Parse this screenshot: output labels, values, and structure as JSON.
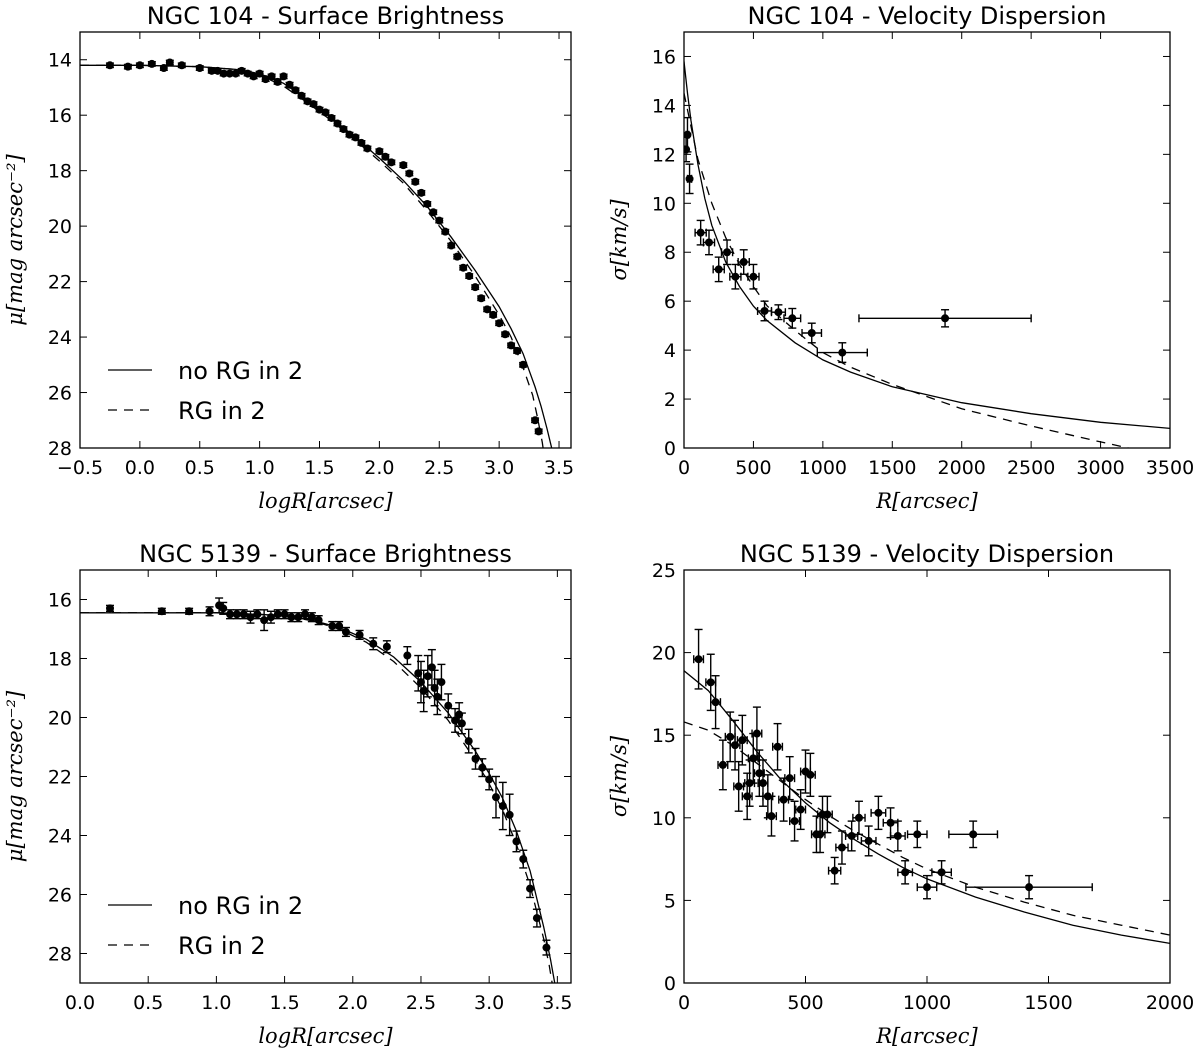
{
  "chart_data": [
    {
      "type": "scatter",
      "title": "NGC 104 - Surface Brightness",
      "xlabel": "logR[arcsec]",
      "ylabel": "μ[mag arcsec⁻²]",
      "xlim": [
        -0.5,
        3.6
      ],
      "ylim": [
        28,
        13
      ],
      "y_inverted": true,
      "xticks": [
        -0.5,
        0.0,
        0.5,
        1.0,
        1.5,
        2.0,
        2.5,
        3.0,
        3.5
      ],
      "xtick_labels": [
        "−0.5",
        "0.0",
        "0.5",
        "1.0",
        "1.5",
        "2.0",
        "2.5",
        "3.0",
        "3.5"
      ],
      "yticks": [
        14,
        16,
        18,
        20,
        22,
        24,
        26,
        28
      ],
      "ytick_labels": [
        "14",
        "16",
        "18",
        "20",
        "22",
        "24",
        "26",
        "28"
      ],
      "legend": {
        "position": "lower-left",
        "entries": [
          {
            "label": "no RG in 2",
            "style": "solid"
          },
          {
            "label": "RG in 2",
            "style": "dashed"
          }
        ]
      },
      "series": [
        {
          "name": "observed",
          "style": "points",
          "yerr": 0.08,
          "x": [
            -0.25,
            -0.1,
            0.0,
            0.1,
            0.2,
            0.25,
            0.35,
            0.5,
            0.6,
            0.65,
            0.7,
            0.75,
            0.8,
            0.85,
            0.9,
            0.95,
            1.0,
            1.05,
            1.1,
            1.15,
            1.2,
            1.25,
            1.3,
            1.35,
            1.4,
            1.45,
            1.5,
            1.55,
            1.6,
            1.65,
            1.7,
            1.75,
            1.8,
            1.85,
            1.9,
            2.0,
            2.05,
            2.1,
            2.2,
            2.25,
            2.3,
            2.35,
            2.4,
            2.45,
            2.5,
            2.55,
            2.6,
            2.65,
            2.7,
            2.75,
            2.8,
            2.85,
            2.9,
            2.95,
            3.0,
            3.05,
            3.1,
            3.15,
            3.2,
            3.3,
            3.33
          ],
          "y": [
            14.2,
            14.25,
            14.2,
            14.15,
            14.3,
            14.1,
            14.2,
            14.3,
            14.4,
            14.4,
            14.5,
            14.5,
            14.5,
            14.4,
            14.5,
            14.6,
            14.5,
            14.7,
            14.6,
            14.8,
            14.6,
            14.9,
            15.1,
            15.3,
            15.5,
            15.6,
            15.8,
            15.9,
            16.1,
            16.3,
            16.5,
            16.7,
            16.8,
            17.0,
            17.2,
            17.3,
            17.5,
            17.7,
            17.8,
            18.1,
            18.4,
            18.8,
            19.2,
            19.5,
            19.8,
            20.2,
            20.7,
            21.1,
            21.5,
            21.8,
            22.2,
            22.6,
            23.0,
            23.2,
            23.5,
            23.9,
            24.3,
            24.5,
            25.0,
            27.0,
            27.4
          ]
        },
        {
          "name": "no RG in 2",
          "style": "solid",
          "x": [
            -0.5,
            0.0,
            0.5,
            0.8,
            1.0,
            1.2,
            1.4,
            1.6,
            1.8,
            2.0,
            2.2,
            2.4,
            2.6,
            2.8,
            3.0,
            3.1,
            3.2,
            3.3,
            3.35,
            3.4,
            3.45,
            3.48
          ],
          "y": [
            14.2,
            14.2,
            14.25,
            14.35,
            14.5,
            14.85,
            15.45,
            16.1,
            16.8,
            17.55,
            18.35,
            19.3,
            20.4,
            21.6,
            22.9,
            23.7,
            24.6,
            25.8,
            26.5,
            27.3,
            28.2,
            29.0
          ]
        },
        {
          "name": "RG in 2",
          "style": "dashed",
          "x": [
            -0.5,
            0.0,
            0.5,
            0.8,
            1.0,
            1.2,
            1.4,
            1.6,
            1.8,
            2.0,
            2.2,
            2.4,
            2.6,
            2.8,
            3.0,
            3.1,
            3.2,
            3.28,
            3.32,
            3.36,
            3.4
          ],
          "y": [
            14.2,
            14.2,
            14.25,
            14.35,
            14.55,
            14.95,
            15.55,
            16.2,
            16.9,
            17.65,
            18.45,
            19.45,
            20.55,
            21.8,
            23.2,
            24.0,
            25.1,
            26.1,
            26.9,
            27.8,
            29.0
          ]
        }
      ]
    },
    {
      "type": "scatter",
      "title": "NGC 104 - Velocity Dispersion",
      "xlabel": "R[arcsec]",
      "ylabel": "σ[km/s]",
      "xlim": [
        0,
        3500
      ],
      "ylim": [
        0,
        17
      ],
      "xticks": [
        0,
        500,
        1000,
        1500,
        2000,
        2500,
        3000,
        3500
      ],
      "xtick_labels": [
        "0",
        "500",
        "1000",
        "1500",
        "2000",
        "2500",
        "3000",
        "3500"
      ],
      "yticks": [
        0,
        2,
        4,
        6,
        8,
        10,
        12,
        14,
        16
      ],
      "ytick_labels": [
        "0",
        "2",
        "4",
        "6",
        "8",
        "10",
        "12",
        "14",
        "16"
      ],
      "series": [
        {
          "name": "observed",
          "style": "points",
          "x": [
            15,
            25,
            40,
            120,
            180,
            250,
            310,
            370,
            430,
            500,
            580,
            680,
            780,
            920,
            1140,
            1880
          ],
          "y": [
            12.2,
            12.8,
            11.0,
            8.8,
            8.4,
            7.3,
            8.0,
            7.0,
            7.6,
            7.0,
            5.6,
            5.55,
            5.3,
            4.7,
            3.9,
            5.3
          ],
          "yerr": [
            0.5,
            0.7,
            0.6,
            0.5,
            0.5,
            0.5,
            0.5,
            0.5,
            0.5,
            0.5,
            0.4,
            0.3,
            0.4,
            0.4,
            0.4,
            0.35
          ],
          "xerr": [
            10,
            10,
            15,
            40,
            40,
            40,
            40,
            40,
            40,
            40,
            50,
            50,
            60,
            70,
            180,
            620
          ]
        },
        {
          "name": "no RG in 2",
          "style": "solid",
          "x": [
            0,
            25,
            50,
            100,
            150,
            200,
            300,
            400,
            500,
            600,
            800,
            1000,
            1200,
            1500,
            2000,
            2500,
            3000,
            3500
          ],
          "y": [
            15.8,
            14.5,
            13.4,
            11.6,
            10.2,
            9.1,
            7.6,
            6.6,
            5.8,
            5.2,
            4.3,
            3.6,
            3.1,
            2.5,
            1.85,
            1.4,
            1.05,
            0.8
          ]
        },
        {
          "name": "RG in 2",
          "style": "dashed",
          "x": [
            0,
            100,
            200,
            300,
            400,
            500,
            600,
            800,
            1000,
            1200,
            1500,
            2000,
            2500,
            3000,
            3200
          ],
          "y": [
            14.5,
            11.8,
            10.0,
            8.6,
            7.5,
            6.6,
            5.8,
            4.8,
            3.9,
            3.3,
            2.6,
            1.6,
            0.9,
            0.25,
            0.0
          ]
        }
      ]
    },
    {
      "type": "scatter",
      "title": "NGC 5139 - Surface Brightness",
      "xlabel": "logR[arcsec]",
      "ylabel": "μ[mag arcsec⁻²]",
      "xlim": [
        0.0,
        3.6
      ],
      "ylim": [
        29,
        15
      ],
      "y_inverted": true,
      "xticks": [
        0.0,
        0.5,
        1.0,
        1.5,
        2.0,
        2.5,
        3.0,
        3.5
      ],
      "xtick_labels": [
        "0.0",
        "0.5",
        "1.0",
        "1.5",
        "2.0",
        "2.5",
        "3.0",
        "3.5"
      ],
      "yticks": [
        16,
        18,
        20,
        22,
        24,
        26,
        28
      ],
      "ytick_labels": [
        "16",
        "18",
        "20",
        "22",
        "24",
        "26",
        "28"
      ],
      "legend": {
        "position": "lower-left",
        "entries": [
          {
            "label": "no RG in 2",
            "style": "solid"
          },
          {
            "label": "RG in 2",
            "style": "dashed"
          }
        ]
      },
      "series": [
        {
          "name": "observed",
          "style": "points",
          "x": [
            0.22,
            0.6,
            0.8,
            0.95,
            1.02,
            1.05,
            1.1,
            1.15,
            1.2,
            1.25,
            1.3,
            1.35,
            1.4,
            1.45,
            1.5,
            1.55,
            1.6,
            1.65,
            1.7,
            1.75,
            1.85,
            1.9,
            1.95,
            2.05,
            2.15,
            2.25,
            2.4,
            2.48,
            2.5,
            2.52,
            2.55,
            2.58,
            2.6,
            2.62,
            2.65,
            2.7,
            2.75,
            2.78,
            2.8,
            2.85,
            2.9,
            2.95,
            3.0,
            3.05,
            3.1,
            3.15,
            3.2,
            3.25,
            3.3,
            3.35,
            3.42
          ],
          "y": [
            16.3,
            16.4,
            16.4,
            16.4,
            16.2,
            16.3,
            16.5,
            16.5,
            16.5,
            16.6,
            16.5,
            16.7,
            16.6,
            16.5,
            16.5,
            16.6,
            16.6,
            16.5,
            16.6,
            16.7,
            16.9,
            16.9,
            17.1,
            17.2,
            17.5,
            17.6,
            17.9,
            18.5,
            18.8,
            19.1,
            18.6,
            18.3,
            19.0,
            19.3,
            18.8,
            19.6,
            20.1,
            19.9,
            20.2,
            20.8,
            21.4,
            21.7,
            22.1,
            22.7,
            23.0,
            23.3,
            24.2,
            24.8,
            25.8,
            26.8,
            27.8
          ],
          "yerr": [
            0.1,
            0.1,
            0.1,
            0.15,
            0.25,
            0.2,
            0.15,
            0.15,
            0.15,
            0.2,
            0.15,
            0.35,
            0.2,
            0.15,
            0.15,
            0.15,
            0.15,
            0.15,
            0.15,
            0.15,
            0.15,
            0.15,
            0.15,
            0.15,
            0.2,
            0.2,
            0.3,
            0.6,
            0.7,
            0.7,
            0.7,
            0.6,
            0.6,
            0.6,
            0.6,
            0.4,
            0.4,
            0.4,
            0.35,
            0.4,
            0.35,
            0.3,
            0.35,
            0.7,
            0.8,
            0.7,
            0.35,
            0.3,
            0.3,
            0.3,
            0.25
          ]
        },
        {
          "name": "no RG in 2",
          "style": "solid",
          "x": [
            0.0,
            0.5,
            1.0,
            1.3,
            1.5,
            1.7,
            1.9,
            2.1,
            2.3,
            2.5,
            2.7,
            2.9,
            3.0,
            3.1,
            3.2,
            3.3,
            3.4,
            3.45,
            3.5
          ],
          "y": [
            16.45,
            16.45,
            16.45,
            16.5,
            16.55,
            16.7,
            16.95,
            17.35,
            17.95,
            18.8,
            19.85,
            21.15,
            21.9,
            22.75,
            23.85,
            25.2,
            27.1,
            28.2,
            29.5
          ]
        },
        {
          "name": "RG in 2",
          "style": "dashed",
          "x": [
            0.0,
            0.5,
            1.0,
            1.3,
            1.5,
            1.7,
            1.9,
            2.1,
            2.3,
            2.5,
            2.7,
            2.9,
            3.0,
            3.1,
            3.2,
            3.3,
            3.4,
            3.44,
            3.48
          ],
          "y": [
            16.45,
            16.45,
            16.45,
            16.5,
            16.55,
            16.72,
            17.0,
            17.45,
            18.1,
            19.0,
            20.1,
            21.45,
            22.25,
            23.15,
            24.3,
            25.7,
            27.5,
            28.4,
            29.5
          ]
        }
      ]
    },
    {
      "type": "scatter",
      "title": "NGC 5139 - Velocity Dispersion",
      "xlabel": "R[arcsec]",
      "ylabel": "σ[km/s]",
      "xlim": [
        0,
        2000
      ],
      "ylim": [
        0,
        25
      ],
      "xticks": [
        0,
        500,
        1000,
        1500,
        2000
      ],
      "xtick_labels": [
        "0",
        "500",
        "1000",
        "1500",
        "2000"
      ],
      "yticks": [
        0,
        5,
        10,
        15,
        20,
        25
      ],
      "ytick_labels": [
        "0",
        "5",
        "10",
        "15",
        "20",
        "25"
      ],
      "series": [
        {
          "name": "observed",
          "style": "points",
          "x": [
            60,
            110,
            130,
            160,
            190,
            210,
            225,
            240,
            260,
            270,
            285,
            300,
            310,
            325,
            345,
            360,
            385,
            410,
            435,
            455,
            480,
            500,
            520,
            545,
            560,
            570,
            590,
            620,
            650,
            690,
            720,
            760,
            800,
            850,
            880,
            910,
            960,
            1000,
            1060,
            1190,
            1420
          ],
          "y": [
            19.6,
            18.2,
            17.0,
            13.2,
            14.9,
            14.4,
            11.9,
            14.7,
            11.3,
            12.1,
            13.6,
            15.1,
            12.7,
            12.1,
            11.3,
            10.1,
            14.3,
            11.1,
            12.4,
            9.8,
            10.5,
            12.8,
            12.6,
            9.0,
            9.0,
            10.2,
            10.2,
            6.8,
            8.2,
            8.9,
            10.0,
            8.6,
            10.3,
            9.7,
            8.9,
            6.7,
            9.0,
            5.8,
            6.7,
            9.0,
            5.8
          ],
          "yerr": [
            1.8,
            1.7,
            1.6,
            1.5,
            1.5,
            1.5,
            1.5,
            1.5,
            1.4,
            1.4,
            1.5,
            1.6,
            1.4,
            1.4,
            1.3,
            1.2,
            1.4,
            1.3,
            1.3,
            1.2,
            1.2,
            1.3,
            1.3,
            1.1,
            1.1,
            1.1,
            1.1,
            0.8,
            1.0,
            0.9,
            1.0,
            0.9,
            1.0,
            0.9,
            0.9,
            0.7,
            0.8,
            0.7,
            0.7,
            0.8,
            0.7
          ],
          "xerr": [
            20,
            20,
            20,
            20,
            20,
            20,
            20,
            20,
            20,
            20,
            20,
            20,
            20,
            20,
            20,
            20,
            20,
            20,
            20,
            20,
            20,
            20,
            20,
            20,
            20,
            20,
            20,
            25,
            25,
            25,
            25,
            30,
            30,
            30,
            30,
            30,
            40,
            40,
            40,
            100,
            260
          ]
        },
        {
          "name": "no RG in 2",
          "style": "solid",
          "x": [
            0,
            100,
            200,
            300,
            400,
            500,
            600,
            700,
            800,
            900,
            1000,
            1200,
            1400,
            1600,
            1800,
            2000
          ],
          "y": [
            18.9,
            17.7,
            15.9,
            14.0,
            12.3,
            10.9,
            9.7,
            8.7,
            7.8,
            7.0,
            6.3,
            5.2,
            4.3,
            3.5,
            2.9,
            2.4
          ]
        },
        {
          "name": "RG in 2",
          "style": "dashed",
          "x": [
            0,
            100,
            200,
            300,
            400,
            500,
            600,
            700,
            800,
            900,
            1000,
            1200,
            1400,
            1600,
            1800,
            2000
          ],
          "y": [
            15.8,
            15.3,
            14.4,
            13.3,
            12.2,
            11.1,
            10.1,
            9.2,
            8.4,
            7.6,
            6.9,
            5.8,
            4.9,
            4.1,
            3.5,
            2.9
          ]
        }
      ]
    }
  ]
}
